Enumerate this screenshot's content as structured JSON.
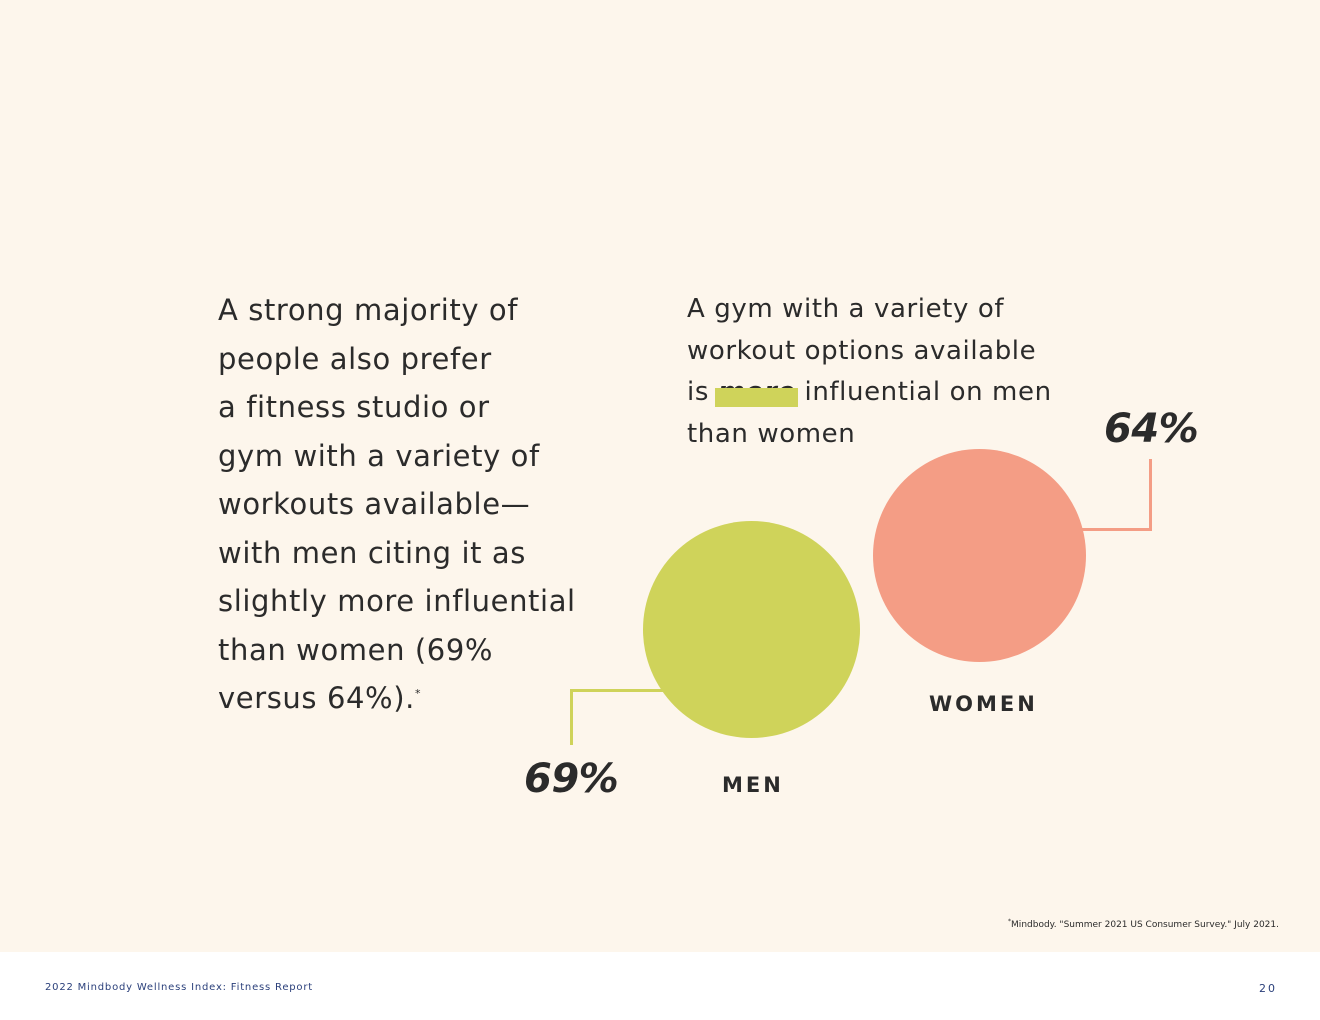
{
  "colors": {
    "background": "#fdf6ec",
    "men": "#cfd35a",
    "women": "#f49d85",
    "text": "#2b2b2b",
    "footer_text": "#2a3f7a"
  },
  "left_text": {
    "lines": [
      "A strong majority of",
      "people also prefer",
      "a fitness studio or",
      "gym with a variety of",
      "workouts available—",
      "with men citing it as",
      "slightly more influential",
      "than women (69%",
      "versus 64%)."
    ],
    "footnote_marker": "*"
  },
  "right_text": {
    "line1": "A gym with a variety of",
    "line2": "workout options available",
    "line3_before": "is ",
    "line3_highlight": "more",
    "line3_after": " influential on men",
    "line4": "than women"
  },
  "chart_data": {
    "type": "bubble",
    "title": "A gym with a variety of workout options available is more influential on men than women",
    "categories": [
      "MEN",
      "WOMEN"
    ],
    "values": [
      69,
      64
    ],
    "value_labels": [
      "69%",
      "64%"
    ],
    "unit": "%"
  },
  "citation": {
    "marker": "*",
    "text": "Mindbody. \"Summer 2021 US Consumer Survey.\" July 2021."
  },
  "footer": {
    "title": "2022 Mindbody Wellness Index: Fitness Report",
    "page_number": "20"
  }
}
